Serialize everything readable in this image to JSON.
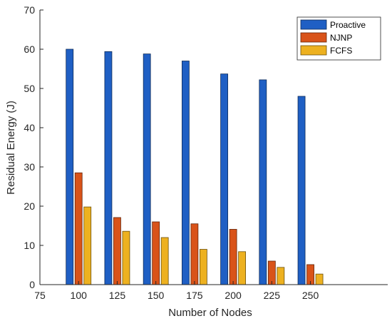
{
  "chart_data": {
    "type": "bar",
    "title": "",
    "xlabel": "Number of Nodes",
    "ylabel": "Residual Energy (J)",
    "categories": [
      "100",
      "125",
      "150",
      "175",
      "200",
      "225",
      "250"
    ],
    "x_tick_labels": [
      "75",
      "100",
      "125",
      "150",
      "175",
      "200",
      "225",
      "250"
    ],
    "xlim": [
      75,
      300
    ],
    "ylim": [
      0,
      70
    ],
    "y_ticks": [
      0,
      10,
      20,
      30,
      40,
      50,
      60,
      70
    ],
    "grid": false,
    "legend_position": "top-right",
    "series": [
      {
        "name": "Proactive",
        "color": "#1f5fc4",
        "values": [
          60,
          59.4,
          58.8,
          57,
          53.7,
          52.2,
          48
        ]
      },
      {
        "name": "NJNP",
        "color": "#d95319",
        "values": [
          28.5,
          17.1,
          16,
          15.5,
          14.1,
          6,
          5.1
        ]
      },
      {
        "name": "FCFS",
        "color": "#edb120",
        "values": [
          19.8,
          13.6,
          12,
          9,
          8.4,
          4.4,
          2.7
        ]
      }
    ]
  }
}
